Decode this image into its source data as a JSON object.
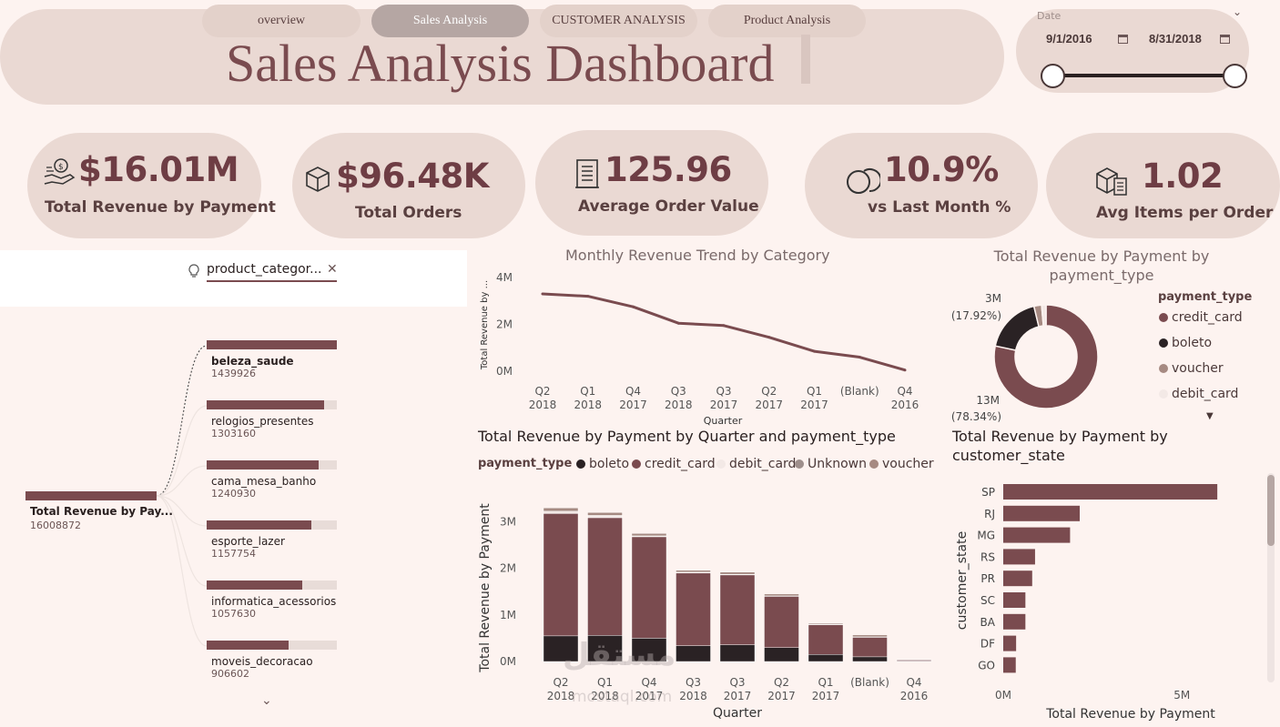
{
  "nav": {
    "tabs": [
      {
        "label": "overview",
        "active": false
      },
      {
        "label": "Sales Analysis",
        "active": true
      },
      {
        "label": "CUSTOMER ANALYSIS",
        "active": false
      },
      {
        "label": "Product Analysis",
        "active": false
      }
    ]
  },
  "header": {
    "title": "Sales Analysis Dashboard"
  },
  "date_filter": {
    "label": "Date",
    "start": "9/1/2016",
    "end": "8/31/2018"
  },
  "kpis": [
    {
      "value": "$16.01M",
      "label": "Total Revenue by Payment",
      "icon": "hand-money-icon"
    },
    {
      "value": "$96.48K",
      "label": "Total Orders",
      "icon": "box-icon"
    },
    {
      "value": "125.96",
      "label": "Average Order Value",
      "icon": "receipt-icon"
    },
    {
      "value": "10.9%",
      "label": "vs Last Month %",
      "icon": "coins-icon"
    },
    {
      "value": "1.02",
      "label": "Avg Items per Order",
      "icon": "package-list-icon"
    }
  ],
  "decomposition": {
    "filter_label": "product_categor...",
    "root": {
      "label": "Total Revenue by Pay...",
      "value": "16008872"
    },
    "items": [
      {
        "name": "beleza_saude",
        "value": "1439926",
        "fraction": 1.0
      },
      {
        "name": "relogios_presentes",
        "value": "1303160",
        "fraction": 0.905
      },
      {
        "name": "cama_mesa_banho",
        "value": "1240930",
        "fraction": 0.862
      },
      {
        "name": "esporte_lazer",
        "value": "1157754",
        "fraction": 0.804
      },
      {
        "name": "informatica_acessorios",
        "value": "1057630",
        "fraction": 0.734
      },
      {
        "name": "moveis_decoracao",
        "value": "906602",
        "fraction": 0.63
      }
    ]
  },
  "colors": {
    "accent": "#7a4b4f",
    "boleto": "#2a2224",
    "credit_card": "#7a4b4f",
    "debit_card": "#f3e9e6",
    "unknown": "#9e8f8c",
    "voucher": "#a68a82",
    "background": "#fdf3f0",
    "pill": "#ead9d3"
  },
  "chart_data": [
    {
      "type": "line",
      "title": "Monthly Revenue Trend by Category",
      "xlabel": "Quarter",
      "ylabel": "Total Revenue by ...",
      "categories": [
        "Q2\n2018",
        "Q1\n2018",
        "Q4\n2017",
        "Q3\n2018",
        "Q3\n2017",
        "Q2\n2017",
        "Q1\n2017",
        "(Blank)",
        "Q4\n2016"
      ],
      "values": [
        3300000,
        3200000,
        2750000,
        2050000,
        1950000,
        1450000,
        850000,
        600000,
        50000
      ],
      "yticks": [
        "0M",
        "2M",
        "4M"
      ],
      "ylim": [
        0,
        4000000
      ]
    },
    {
      "type": "pie",
      "title": "Total Revenue by Payment by payment_type",
      "legend_title": "payment_type",
      "slices": [
        {
          "name": "credit_card",
          "value": 12540000,
          "percent": 78.34
        },
        {
          "name": "boleto",
          "value": 2870000,
          "percent": 17.92
        },
        {
          "name": "voucher",
          "value": 380000,
          "percent": 2.37
        },
        {
          "name": "debit_card",
          "value": 220000,
          "percent": 1.37
        }
      ],
      "labels": [
        {
          "text": "3M",
          "sub": "(17.92%)"
        },
        {
          "text": "13M",
          "sub": "(78.34%)"
        }
      ]
    },
    {
      "type": "bar",
      "stacked": true,
      "title": "Total Revenue by Payment by Quarter and payment_type",
      "xlabel": "Quarter",
      "ylabel": "Total Revenue by Payment",
      "legend_title": "payment_type",
      "legend": [
        "boleto",
        "credit_card",
        "debit_card",
        "Unknown",
        "voucher"
      ],
      "categories": [
        "Q2\n2018",
        "Q1\n2018",
        "Q4\n2017",
        "Q3\n2018",
        "Q3\n2017",
        "Q2\n2017",
        "Q1\n2017",
        "(Blank)",
        "Q4\n2016"
      ],
      "series": [
        {
          "name": "boleto",
          "values": [
            550000,
            560000,
            500000,
            340000,
            360000,
            300000,
            150000,
            100000,
            10000
          ]
        },
        {
          "name": "credit_card",
          "values": [
            2630000,
            2530000,
            2180000,
            1560000,
            1500000,
            1100000,
            640000,
            420000,
            25000
          ]
        },
        {
          "name": "debit_card",
          "values": [
            50000,
            50000,
            20000,
            20000,
            15000,
            10000,
            10000,
            10000,
            5000
          ]
        },
        {
          "name": "Unknown",
          "values": [
            0,
            0,
            0,
            0,
            0,
            0,
            0,
            0,
            0
          ]
        },
        {
          "name": "voucher",
          "values": [
            70000,
            60000,
            50000,
            40000,
            45000,
            40000,
            20000,
            40000,
            0
          ]
        }
      ],
      "yticks": [
        "0M",
        "1M",
        "2M",
        "3M"
      ],
      "ylim": [
        0,
        3500000
      ]
    },
    {
      "type": "bar",
      "orientation": "horizontal",
      "title": "Total Revenue by Payment by customer_state",
      "xlabel": "Total Revenue by Payment",
      "ylabel": "customer_state",
      "categories": [
        "SP",
        "RJ",
        "MG",
        "RS",
        "PR",
        "SC",
        "BA",
        "DF",
        "GO"
      ],
      "values": [
        5990000,
        2140000,
        1870000,
        890000,
        810000,
        620000,
        620000,
        360000,
        350000
      ],
      "xticks": [
        "0M",
        "5M"
      ],
      "xlim": [
        0,
        6700000
      ]
    }
  ],
  "watermark": {
    "text": "مستقل",
    "sub": "mostaql.com"
  }
}
